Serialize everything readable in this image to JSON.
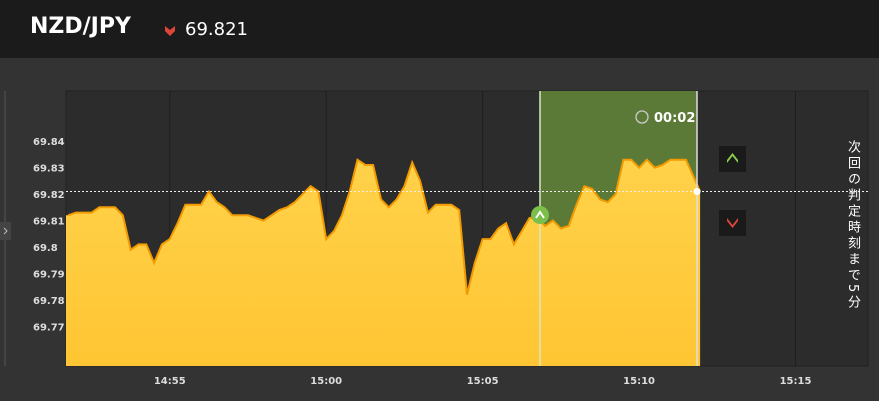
{
  "header": {
    "symbol": "NZD/JPY",
    "price": "69.821"
  },
  "timer": "00:02",
  "side_note": "次回の判定時刻まで5分",
  "chart_data": {
    "type": "area",
    "color": "#ffc83a",
    "line_color": "#f29a00",
    "grid": true,
    "x": [
      "14:51:45",
      "14:52:00",
      "14:52:15",
      "14:52:30",
      "14:52:45",
      "14:53:00",
      "14:53:15",
      "14:53:30",
      "14:53:45",
      "14:54:00",
      "14:54:15",
      "14:54:30",
      "14:54:45",
      "14:55:00",
      "14:55:15",
      "14:55:30",
      "14:55:45",
      "14:56:00",
      "14:56:15",
      "14:56:30",
      "14:56:45",
      "14:57:00",
      "14:57:15",
      "14:57:30",
      "14:57:45",
      "14:58:00",
      "14:58:15",
      "14:58:30",
      "14:58:45",
      "14:59:00",
      "14:59:15",
      "14:59:30",
      "14:59:45",
      "15:00:00",
      "15:00:15",
      "15:00:30",
      "15:00:45",
      "15:01:00",
      "15:01:15",
      "15:01:30",
      "15:01:45",
      "15:02:00",
      "15:02:15",
      "15:02:30",
      "15:02:45",
      "15:03:00",
      "15:03:15",
      "15:03:30",
      "15:03:45",
      "15:04:00",
      "15:04:15",
      "15:04:30",
      "15:04:45",
      "15:05:00",
      "15:05:15",
      "15:05:30",
      "15:05:45",
      "15:06:00",
      "15:06:15",
      "15:06:30",
      "15:06:45",
      "15:07:00",
      "15:07:15",
      "15:07:30",
      "15:07:45",
      "15:08:00",
      "15:08:15",
      "15:08:30",
      "15:08:45",
      "15:09:00",
      "15:09:15",
      "15:09:30",
      "15:09:45",
      "15:10:00",
      "15:10:15",
      "15:10:30",
      "15:10:45",
      "15:11:00",
      "15:11:15",
      "15:11:30",
      "15:11:57"
    ],
    "values": [
      69.812,
      69.813,
      69.813,
      69.813,
      69.815,
      69.815,
      69.815,
      69.812,
      69.799,
      69.801,
      69.801,
      69.794,
      69.801,
      69.803,
      69.809,
      69.816,
      69.816,
      69.816,
      69.821,
      69.817,
      69.815,
      69.812,
      69.812,
      69.812,
      69.811,
      69.81,
      69.812,
      69.814,
      69.815,
      69.817,
      69.82,
      69.823,
      69.821,
      69.803,
      69.806,
      69.812,
      69.821,
      69.833,
      69.831,
      69.831,
      69.818,
      69.815,
      69.818,
      69.823,
      69.832,
      69.825,
      69.813,
      69.816,
      69.816,
      69.816,
      69.814,
      69.782,
      69.794,
      69.803,
      69.803,
      69.807,
      69.809,
      69.801,
      69.806,
      69.811,
      69.811,
      69.808,
      69.81,
      69.807,
      69.808,
      69.816,
      69.823,
      69.822,
      69.818,
      69.817,
      69.82,
      69.833,
      69.833,
      69.83,
      69.833,
      69.83,
      69.831,
      69.833,
      69.833,
      69.833,
      69.821
    ],
    "xlim": [
      "14:51:41",
      "15:17:19"
    ],
    "xticks": [
      "14:55",
      "15:00",
      "15:05",
      "15:10",
      "15:15"
    ],
    "ylim": [
      69.755,
      69.859
    ],
    "yticks": [
      69.77,
      69.78,
      69.79,
      69.8,
      69.81,
      69.82,
      69.83,
      69.84
    ]
  }
}
